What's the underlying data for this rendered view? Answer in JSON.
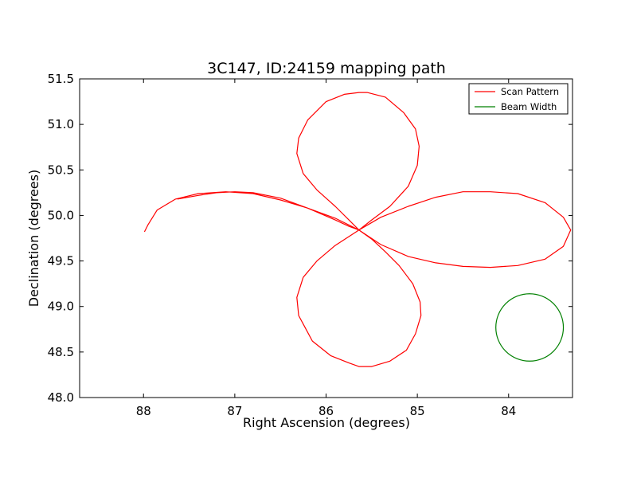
{
  "chart_data": {
    "type": "line",
    "title": "3C147, ID:24159 mapping path",
    "xlabel": "Right Ascension (degrees)",
    "ylabel": "Declination (degrees)",
    "xlim": [
      88.7,
      83.3
    ],
    "ylim": [
      48.0,
      51.5
    ],
    "x_ticks": [
      88,
      87,
      86,
      85,
      84
    ],
    "y_ticks": [
      48.0,
      48.5,
      49.0,
      49.5,
      50.0,
      50.5,
      51.0,
      51.5
    ],
    "legend": {
      "placement": "top-right",
      "entries": [
        "Scan Pattern",
        "Beam Width"
      ]
    },
    "series": [
      {
        "name": "Scan Pattern",
        "color": "#ff0000",
        "x": [
          87.63,
          87.4,
          87.2,
          87.0,
          86.8,
          86.5,
          86.2,
          85.9,
          85.75,
          85.64,
          85.5,
          85.35,
          85.2,
          85.05,
          84.97,
          84.96,
          85.02,
          85.12,
          85.3,
          85.5,
          85.64,
          85.75,
          85.95,
          86.15,
          86.3,
          86.32,
          86.25,
          86.1,
          85.9,
          85.64,
          85.4,
          85.1,
          84.8,
          84.5,
          84.2,
          83.9,
          83.6,
          83.4,
          83.32,
          83.4,
          83.6,
          83.9,
          84.2,
          84.5,
          84.8,
          85.1,
          85.4,
          85.64,
          85.9,
          86.2,
          86.5,
          86.8,
          87.1,
          87.4,
          87.65,
          87.85,
          87.95,
          87.99
        ],
        "y": [
          50.18,
          50.22,
          50.25,
          50.26,
          50.25,
          50.19,
          50.08,
          49.95,
          49.88,
          49.84,
          49.74,
          49.6,
          49.45,
          49.25,
          49.05,
          48.9,
          48.7,
          48.52,
          48.4,
          48.34,
          48.34,
          48.38,
          48.46,
          48.62,
          48.9,
          49.1,
          49.32,
          49.5,
          49.67,
          49.84,
          49.98,
          50.1,
          50.2,
          50.26,
          50.26,
          50.24,
          50.14,
          49.98,
          49.84,
          49.66,
          49.52,
          49.45,
          49.43,
          49.44,
          49.48,
          49.55,
          49.68,
          49.84,
          49.97,
          50.08,
          50.17,
          50.24,
          50.26,
          50.24,
          50.18,
          50.06,
          49.9,
          49.82
        ]
      },
      {
        "name": "Scan Pattern",
        "color": "#ff0000",
        "x": [
          85.64,
          85.5,
          85.3,
          85.1,
          85.0,
          84.98,
          85.02,
          85.15,
          85.35,
          85.55,
          85.64,
          85.8,
          86.0,
          86.2,
          86.3,
          86.32,
          86.25,
          86.1,
          85.9,
          85.75,
          85.64
        ],
        "y": [
          49.84,
          49.95,
          50.1,
          50.32,
          50.55,
          50.76,
          50.95,
          51.13,
          51.3,
          51.35,
          51.35,
          51.33,
          51.25,
          51.05,
          50.85,
          50.68,
          50.46,
          50.28,
          50.1,
          49.95,
          49.84
        ]
      },
      {
        "name": "Beam Width",
        "color": "#008000",
        "shape": "circle",
        "cx": 83.77,
        "cy": 48.77,
        "r": 0.37
      }
    ]
  }
}
